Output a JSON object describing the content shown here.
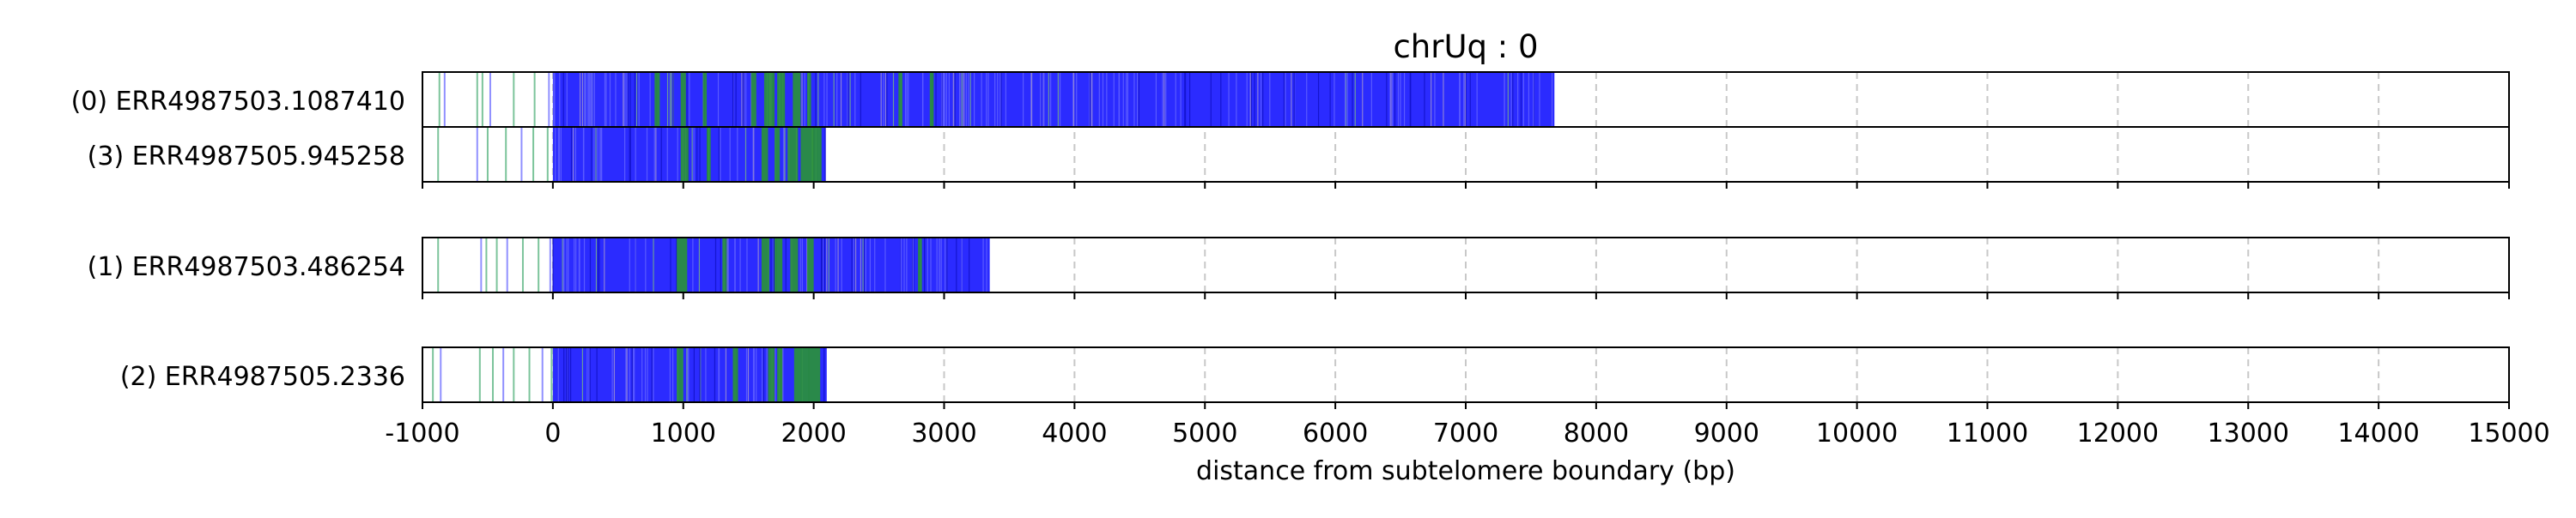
{
  "chart_data": {
    "type": "read-track",
    "title": "chrUq : 0",
    "xlabel": "distance from subtelomere boundary (bp)",
    "xlim": [
      -1000,
      15000
    ],
    "xticks": [
      -1000,
      0,
      1000,
      2000,
      3000,
      4000,
      5000,
      6000,
      7000,
      8000,
      9000,
      10000,
      11000,
      12000,
      13000,
      14000,
      15000
    ],
    "grid": "x-dashed",
    "colors": {
      "blue": "#2b2bff",
      "green": "#2a9a2a",
      "faint_green": "#7cc49b",
      "faint_blue": "#9090ff",
      "grid": "#c8c8c8"
    },
    "groups": [
      [
        {
          "label": "(0) ERR4987503.1087410",
          "start": -1000,
          "end": 7680,
          "blue_start": 0,
          "green_segments": [
            [
              780,
              820
            ],
            [
              980,
              1020
            ],
            [
              1150,
              1180
            ],
            [
              1520,
              1560
            ],
            [
              1620,
              1700
            ],
            [
              1720,
              1780
            ],
            [
              1840,
              1900
            ],
            [
              1950,
              1980
            ],
            [
              2650,
              2680
            ],
            [
              2890,
              2920
            ]
          ],
          "pre_lines": [
            -870,
            -830,
            -580,
            -540,
            -480,
            -300,
            -140,
            -30
          ]
        },
        {
          "label": "(3) ERR4987505.945258",
          "start": -1000,
          "end": 2090,
          "blue_start": 0,
          "green_segments": [
            [
              980,
              1040
            ],
            [
              1180,
              1210
            ],
            [
              1600,
              1650
            ],
            [
              1700,
              1740
            ],
            [
              1800,
              1880
            ],
            [
              1900,
              2060
            ]
          ],
          "pre_lines": [
            -880,
            -580,
            -500,
            -360,
            -240,
            -150,
            -40
          ]
        }
      ],
      [
        {
          "label": "(1) ERR4987503.486254",
          "start": -1000,
          "end": 3350,
          "blue_start": 0,
          "green_segments": [
            [
              950,
              1030
            ],
            [
              1300,
              1330
            ],
            [
              1600,
              1660
            ],
            [
              1700,
              1760
            ],
            [
              1820,
              1880
            ],
            [
              1950,
              2000
            ],
            [
              2800,
              2830
            ]
          ],
          "pre_lines": [
            -880,
            -550,
            -510,
            -430,
            -350,
            -230,
            -110,
            -20
          ]
        }
      ],
      [
        {
          "label": "(2) ERR4987505.2336",
          "start": -1000,
          "end": 2100,
          "blue_start": 0,
          "green_segments": [
            [
              950,
              1000
            ],
            [
              1380,
              1420
            ],
            [
              1650,
              1700
            ],
            [
              1720,
              1760
            ],
            [
              1850,
              2050
            ]
          ],
          "pre_lines": [
            -920,
            -860,
            -560,
            -460,
            -380,
            -300,
            -180,
            -80,
            -10
          ]
        }
      ]
    ]
  }
}
